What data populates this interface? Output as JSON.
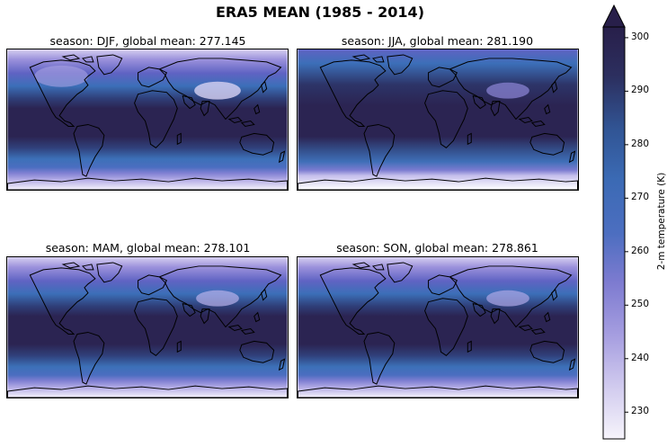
{
  "figure": {
    "title": "ERA5 MEAN (1985 - 2014)"
  },
  "panels": [
    {
      "title": "season: DJF, global mean: 277.145",
      "season": "DJF",
      "global_mean": 277.145
    },
    {
      "title": "season: JJA, global mean: 281.190",
      "season": "JJA",
      "global_mean": 281.19
    },
    {
      "title": "season: MAM, global mean: 278.101",
      "season": "MAM",
      "global_mean": 278.101
    },
    {
      "title": "season: SON, global mean: 278.861",
      "season": "SON",
      "global_mean": 278.861
    }
  ],
  "colorbar": {
    "label": "2-m temperature (K)",
    "ticks": [
      "230",
      "240",
      "250",
      "260",
      "270",
      "280",
      "290",
      "300"
    ],
    "tick_values": [
      230,
      240,
      250,
      260,
      270,
      280,
      290,
      300
    ],
    "vmin": 225,
    "vmax": 302,
    "extend": "max"
  },
  "chart_data": {
    "type": "heatmap",
    "title": "ERA5 MEAN (1985 - 2014)",
    "variable": "2-m temperature (K)",
    "panels": [
      "DJF",
      "JJA",
      "MAM",
      "SON"
    ],
    "global_means": [
      277.145,
      281.19,
      278.101,
      278.861
    ],
    "colorbar_range": [
      225,
      302
    ]
  },
  "colors": {
    "cmap_low": "#f6f4fb",
    "cmap_mid": "#3f6fb8",
    "cmap_high": "#281f4a"
  }
}
